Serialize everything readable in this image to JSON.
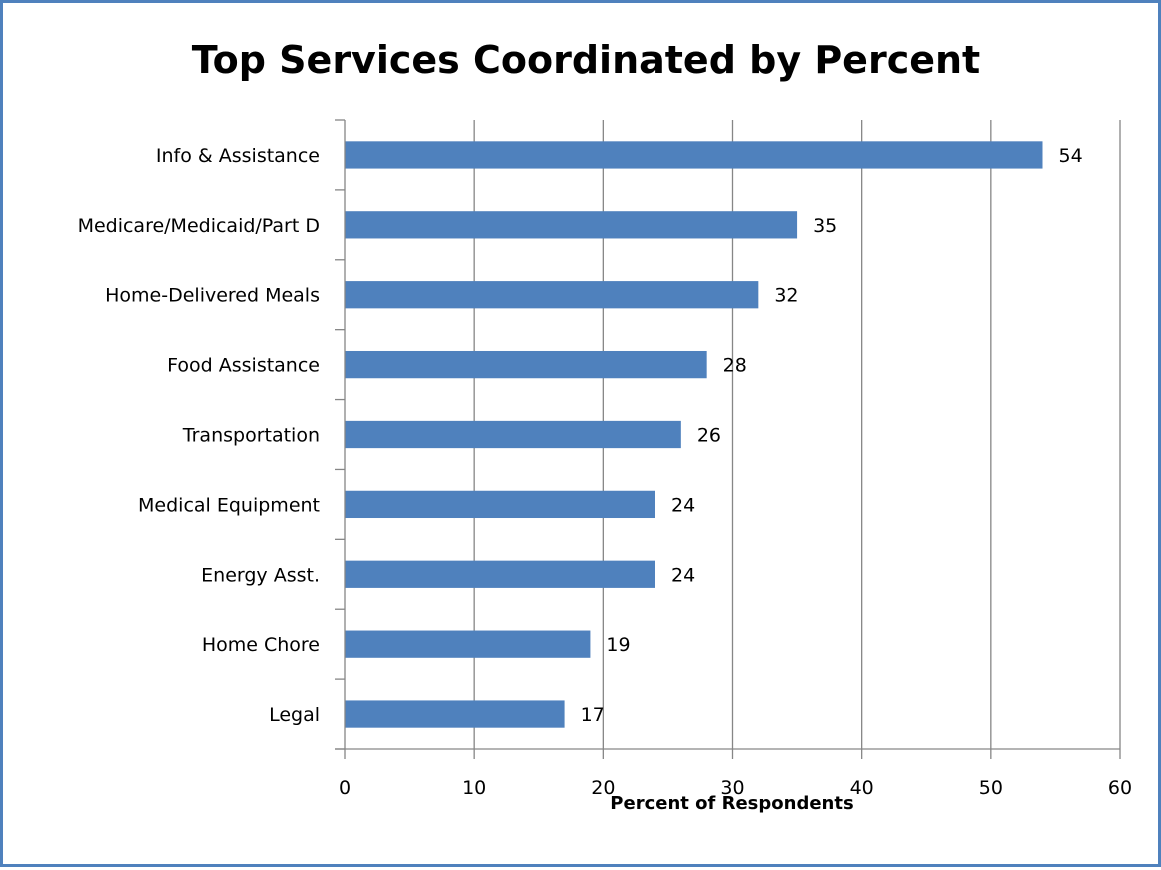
{
  "chart_data": {
    "type": "bar",
    "orientation": "horizontal",
    "title": "Top Services Coordinated by Percent",
    "xlabel": "Percent of Respondents",
    "ylabel": "",
    "categories": [
      "Info & Assistance",
      "Medicare/Medicaid/Part D",
      "Home-Delivered Meals",
      "Food Assistance",
      "Transportation",
      "Medical Equipment",
      "Energy Asst.",
      "Home Chore",
      "Legal"
    ],
    "values": [
      54,
      35,
      32,
      28,
      26,
      24,
      24,
      19,
      17
    ],
    "xlim": [
      0,
      60
    ],
    "xticks": [
      0,
      10,
      20,
      30,
      40,
      50,
      60
    ],
    "grid": "vertical",
    "legend": "none",
    "data_labels": true,
    "colors": {
      "bar": "#4f81bd",
      "frame": "#4f81bd",
      "gridline": "#868686",
      "axis": "#868686"
    }
  }
}
